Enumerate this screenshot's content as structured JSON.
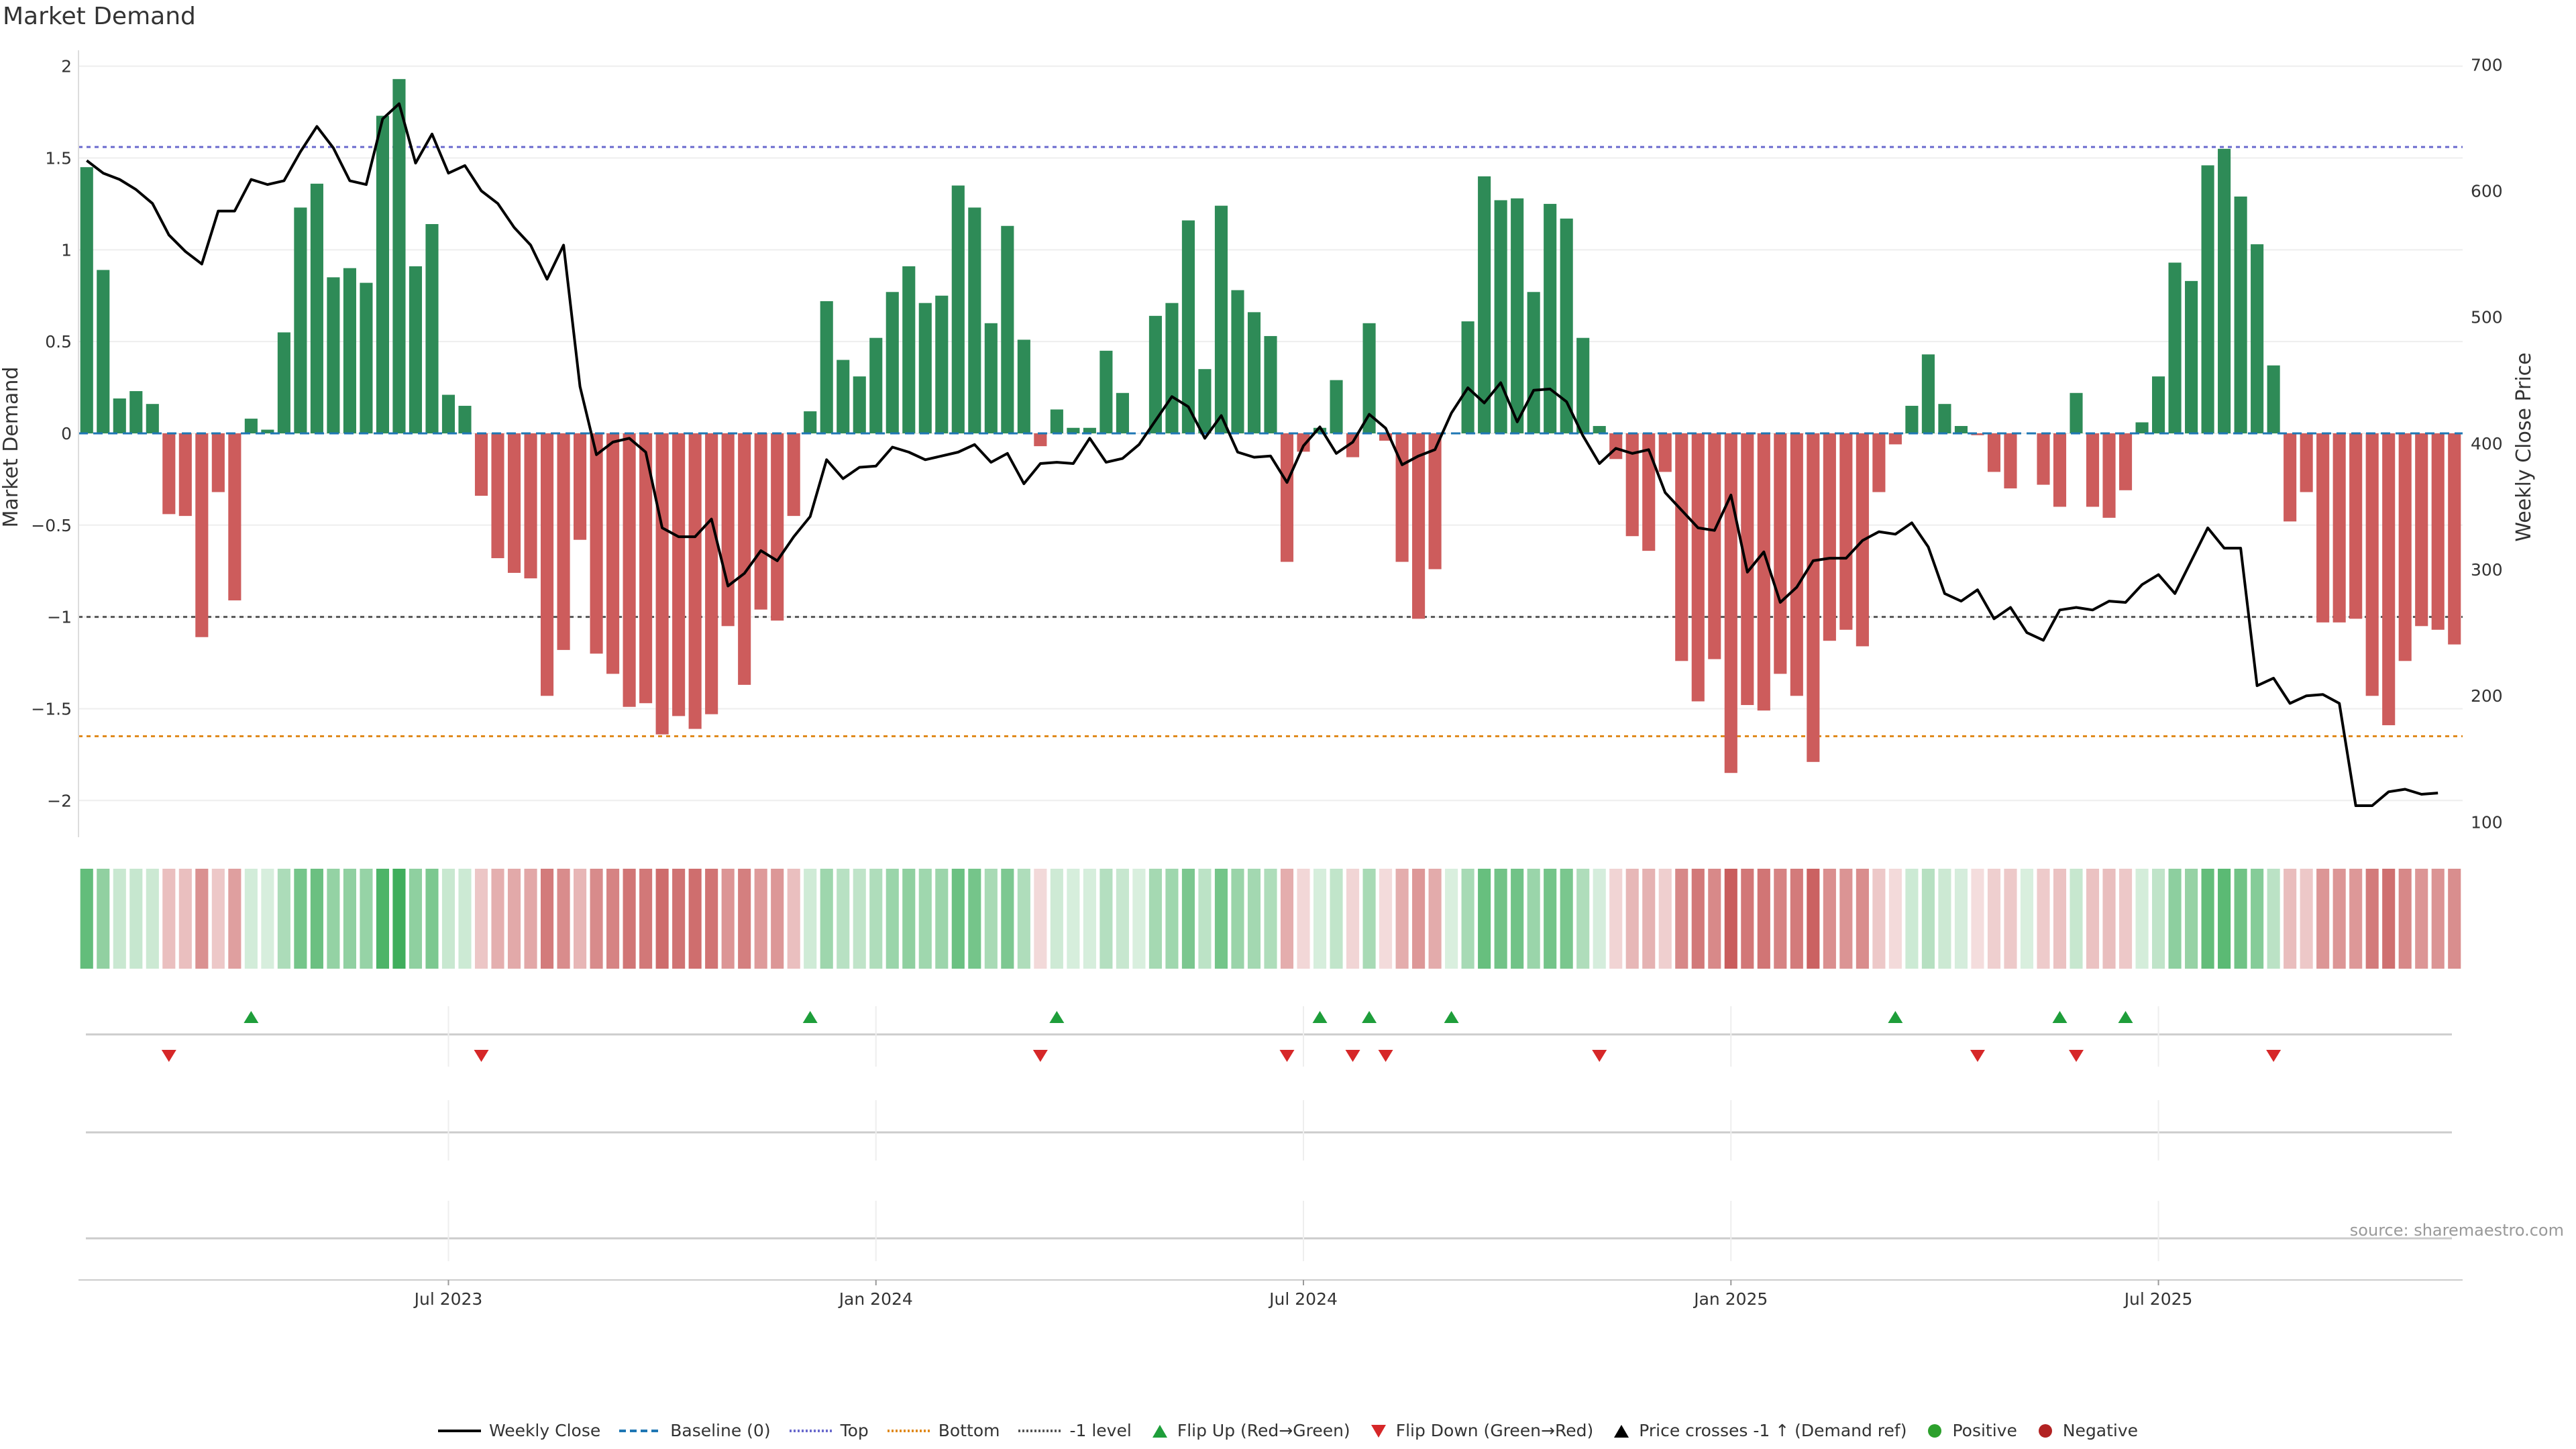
{
  "title": "Market Demand",
  "source": "source: sharemaestro.com",
  "chart_data": {
    "type": "bar",
    "title": "Market Demand",
    "ylabel": "Market Demand",
    "y2label": "Weekly Close Price",
    "ylim": [
      -2.2,
      2.05
    ],
    "y2lim": [
      88,
      706
    ],
    "yticks": [
      {
        "v": 2,
        "label": "2"
      },
      {
        "v": 1.5,
        "label": "1.5"
      },
      {
        "v": 1,
        "label": "1"
      },
      {
        "v": 0.5,
        "label": "0.5"
      },
      {
        "v": 0,
        "label": "0"
      },
      {
        "v": -0.5,
        "label": "−0.5"
      },
      {
        "v": -1,
        "label": "−1"
      },
      {
        "v": -1.5,
        "label": "−1.5"
      },
      {
        "v": -2,
        "label": "−2"
      }
    ],
    "y2ticks": [
      {
        "v": 700,
        "label": "700"
      },
      {
        "v": 600,
        "label": "600"
      },
      {
        "v": 500,
        "label": "500"
      },
      {
        "v": 400,
        "label": "400"
      },
      {
        "v": 300,
        "label": "300"
      },
      {
        "v": 200,
        "label": "200"
      },
      {
        "v": 100,
        "label": "100"
      }
    ],
    "xticks": [
      {
        "i": 22,
        "label": "Jul 2023"
      },
      {
        "i": 48,
        "label": "Jan 2024"
      },
      {
        "i": 74,
        "label": "Jul 2024"
      },
      {
        "i": 100,
        "label": "Jan 2025"
      },
      {
        "i": 126,
        "label": "Jul 2025"
      }
    ],
    "reference_lines": {
      "top": 1.56,
      "bottom": -1.65,
      "minus_one": -1.0,
      "baseline": 0
    },
    "demand": [
      1.45,
      0.89,
      0.19,
      0.23,
      0.16,
      -0.44,
      -0.45,
      -1.11,
      -0.32,
      -0.91,
      0.08,
      0.02,
      0.55,
      1.23,
      1.36,
      0.85,
      0.9,
      0.82,
      1.73,
      1.93,
      0.91,
      1.14,
      0.21,
      0.15,
      -0.34,
      -0.68,
      -0.76,
      -0.79,
      -1.43,
      -1.18,
      -0.58,
      -1.2,
      -1.31,
      -1.49,
      -1.47,
      -1.64,
      -1.54,
      -1.61,
      -1.53,
      -1.05,
      -1.37,
      -0.96,
      -1.02,
      -0.45,
      0.12,
      0.72,
      0.4,
      0.31,
      0.52,
      0.77,
      0.91,
      0.71,
      0.75,
      1.35,
      1.23,
      0.6,
      1.13,
      0.51,
      -0.07,
      0.13,
      0.03,
      0.03,
      0.45,
      0.22,
      0.0,
      0.64,
      0.71,
      1.16,
      0.35,
      1.24,
      0.78,
      0.66,
      0.53,
      -0.7,
      -0.1,
      0.03,
      0.29,
      -0.13,
      0.6,
      -0.04,
      -0.7,
      -1.01,
      -0.74,
      0.0,
      0.61,
      1.4,
      1.27,
      1.28,
      0.77,
      1.25,
      1.17,
      0.52,
      0.04,
      -0.14,
      -0.56,
      -0.64,
      -0.21,
      -1.24,
      -1.46,
      -1.23,
      -1.85,
      -1.48,
      -1.51,
      -1.31,
      -1.43,
      -1.79,
      -1.13,
      -1.07,
      -1.16,
      -0.32,
      -0.06,
      0.15,
      0.43,
      0.16,
      0.04,
      -0.01,
      -0.21,
      -0.3,
      0.0,
      -0.28,
      -0.4,
      0.22,
      -0.4,
      -0.46,
      -0.31,
      0.06,
      0.31,
      0.93,
      0.83,
      1.46,
      1.55,
      1.29,
      1.03,
      0.37,
      -0.48,
      -0.32,
      -1.03,
      -1.03,
      -1.01,
      -1.43,
      -1.59,
      -1.24,
      -1.05,
      -1.07,
      -1.15
    ],
    "price": [
      624,
      614,
      609,
      601,
      590,
      565,
      552,
      542,
      584,
      584,
      609,
      605,
      608,
      631,
      651,
      634,
      608,
      605,
      657,
      669,
      622,
      645,
      614,
      620,
      600,
      590,
      571,
      557,
      530,
      557,
      445,
      391,
      401,
      404,
      393,
      333,
      326,
      326,
      340,
      287,
      297,
      315,
      307,
      326,
      342,
      387,
      372,
      381,
      382,
      397,
      393,
      387,
      390,
      393,
      399,
      385,
      392,
      368,
      384,
      385,
      384,
      404,
      385,
      388,
      399,
      418,
      437,
      429,
      404,
      422,
      393,
      389,
      390,
      369,
      398,
      413,
      392,
      401,
      423,
      412,
      383,
      390,
      395,
      424,
      444,
      432,
      448,
      417,
      442,
      443,
      433,
      406,
      384,
      396,
      392,
      395,
      361,
      347,
      333,
      331,
      359,
      298,
      314,
      274,
      286,
      307,
      309,
      309,
      323,
      330,
      328,
      337,
      318,
      281,
      275,
      284,
      261,
      270,
      250,
      244,
      268,
      270,
      268,
      275,
      274,
      288,
      296,
      281,
      307,
      333,
      317,
      317,
      208,
      214,
      194,
      200,
      201,
      194,
      113,
      113,
      124,
      126,
      122,
      123
    ],
    "flip_up_idx": [
      10,
      44,
      59,
      75,
      78,
      83,
      110,
      120,
      124
    ],
    "flip_down_idx": [
      5,
      24,
      58,
      73,
      77,
      79,
      92,
      115,
      121,
      133
    ],
    "colors": {
      "positive": "#2e8b57",
      "negative": "#cd5c5c",
      "price": "#000000",
      "baseline": "#1f77b4",
      "top": "#6a6acd",
      "bottom": "#e08a1e",
      "minus_one": "#555555",
      "flip_up": "#1e9e3a",
      "flip_down": "#d62728",
      "pos_dot": "#2ca02c",
      "neg_dot": "#b22222"
    }
  },
  "legend": [
    {
      "label": "Weekly Close",
      "kind": "line",
      "color": "#000000",
      "dash": ""
    },
    {
      "label": "Baseline (0)",
      "kind": "line",
      "color": "#1f77b4",
      "dash": "10,6"
    },
    {
      "label": "Top",
      "kind": "line",
      "color": "#6a6acd",
      "dash": "3,3"
    },
    {
      "label": "Bottom",
      "kind": "line",
      "color": "#e08a1e",
      "dash": "3,3"
    },
    {
      "label": "-1 level",
      "kind": "line",
      "color": "#555555",
      "dash": "3,3"
    },
    {
      "label": "Flip Up (Red→Green)",
      "kind": "up",
      "color": "#1e9e3a"
    },
    {
      "label": "Flip Down (Green→Red)",
      "kind": "down",
      "color": "#d62728"
    },
    {
      "label": "Price crosses -1 ↑ (Demand ref)",
      "kind": "up",
      "color": "#000000"
    },
    {
      "label": "Positive",
      "kind": "dot",
      "color": "#2ca02c"
    },
    {
      "label": "Negative",
      "kind": "dot",
      "color": "#b22222"
    }
  ]
}
